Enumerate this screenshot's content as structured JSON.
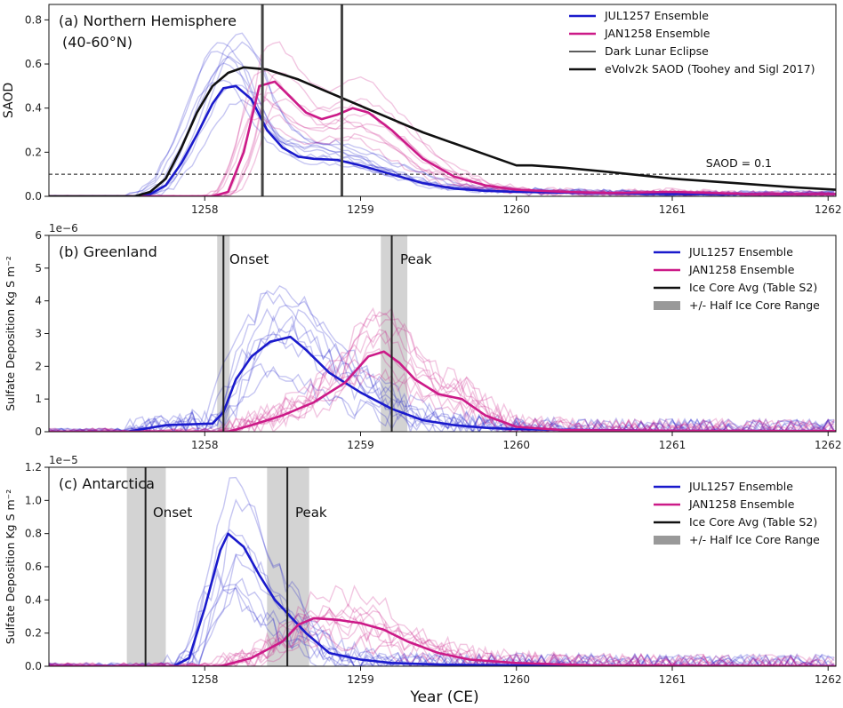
{
  "figure": {
    "xlabel": "Year (CE)"
  },
  "colors": {
    "jul": "#1a1acc",
    "jan": "#cc1a88",
    "obs": "#111111",
    "shade": "#d3d3d3",
    "vline": "#444444"
  },
  "chart_data": [
    {
      "type": "line",
      "panel": "a",
      "title": "(a) Northern Hemisphere",
      "subtitle": "(40-60°N)",
      "ylabel": "SAOD",
      "xlim": [
        1257.0,
        1262.05
      ],
      "ylim": [
        0,
        0.87
      ],
      "xticks": [
        1258,
        1259,
        1260,
        1261,
        1262
      ],
      "yticks": [
        0.0,
        0.2,
        0.4,
        0.6,
        0.8
      ],
      "ytick_labels": [
        "0.0",
        "0.2",
        "0.4",
        "0.6",
        "0.8"
      ],
      "multiplier": "",
      "legend": [
        "JUL1257 Ensemble",
        "JAN1258 Ensemble",
        "Dark Lunar Eclipse",
        "eVolv2k SAOD (Toohey and Sigl 2017)"
      ],
      "hline": {
        "y": 0.1,
        "label": "SAOD = 0.1"
      },
      "vlines": [
        1258.37,
        1258.88
      ],
      "series": [
        {
          "name": "JUL1257 Ensemble mean",
          "x": [
            1257.0,
            1257.55,
            1257.65,
            1257.75,
            1257.85,
            1257.95,
            1258.05,
            1258.12,
            1258.2,
            1258.3,
            1258.4,
            1258.5,
            1258.6,
            1258.7,
            1258.85,
            1259.0,
            1259.2,
            1259.4,
            1259.6,
            1259.8,
            1260.0,
            1260.5,
            1261.0,
            1261.5,
            1262.05
          ],
          "y": [
            0,
            0,
            0.01,
            0.05,
            0.15,
            0.28,
            0.42,
            0.49,
            0.5,
            0.44,
            0.3,
            0.22,
            0.18,
            0.17,
            0.165,
            0.14,
            0.1,
            0.06,
            0.035,
            0.025,
            0.02,
            0.015,
            0.01,
            0.01,
            0.01
          ]
        },
        {
          "name": "JAN1258 Ensemble mean",
          "x": [
            1257.0,
            1258.05,
            1258.15,
            1258.25,
            1258.35,
            1258.45,
            1258.55,
            1258.65,
            1258.75,
            1258.85,
            1258.95,
            1259.05,
            1259.2,
            1259.4,
            1259.6,
            1259.8,
            1260.0,
            1260.3,
            1260.6,
            1261.0,
            1261.5,
            1262.05
          ],
          "y": [
            0,
            0,
            0.02,
            0.2,
            0.5,
            0.52,
            0.45,
            0.38,
            0.35,
            0.37,
            0.4,
            0.38,
            0.3,
            0.17,
            0.09,
            0.05,
            0.03,
            0.02,
            0.015,
            0.02,
            0.01,
            0.01
          ]
        },
        {
          "name": "eVolv2k SAOD (Toohey and Sigl 2017)",
          "x": [
            1257.0,
            1257.55,
            1257.65,
            1257.75,
            1257.85,
            1257.95,
            1258.05,
            1258.15,
            1258.25,
            1258.4,
            1258.6,
            1258.8,
            1259.0,
            1259.2,
            1259.4,
            1259.6,
            1259.8,
            1260.0,
            1260.1,
            1260.3,
            1260.6,
            1261.0,
            1261.4,
            1261.8,
            1262.05
          ],
          "y": [
            0,
            0,
            0.02,
            0.08,
            0.22,
            0.38,
            0.5,
            0.56,
            0.585,
            0.575,
            0.53,
            0.47,
            0.41,
            0.35,
            0.29,
            0.24,
            0.19,
            0.14,
            0.14,
            0.13,
            0.11,
            0.08,
            0.06,
            0.04,
            0.03
          ]
        }
      ]
    },
    {
      "type": "line",
      "panel": "b",
      "title": "(b) Greenland",
      "ylabel": "Sulfate Deposition Kg S m⁻²",
      "xlim": [
        1257.0,
        1262.05
      ],
      "ylim": [
        0,
        6
      ],
      "xticks": [
        1258,
        1259,
        1260,
        1261,
        1262
      ],
      "yticks": [
        0,
        1,
        2,
        3,
        4,
        5,
        6
      ],
      "ytick_labels": [
        "0",
        "1",
        "2",
        "3",
        "4",
        "5",
        "6"
      ],
      "multiplier": "1e−6",
      "legend": [
        "JUL1257 Ensemble",
        "JAN1258 Ensemble",
        "Ice Core Avg (Table S2)",
        "+/- Half Ice Core Range"
      ],
      "annotations": [
        "Onset",
        "Peak"
      ],
      "vlines": [
        1258.12,
        1259.2
      ],
      "shades": [
        [
          1258.08,
          1258.16
        ],
        [
          1259.13,
          1259.3
        ]
      ],
      "series": [
        {
          "name": "JUL1257 Ensemble mean",
          "x": [
            1257.0,
            1257.5,
            1257.75,
            1258.05,
            1258.12,
            1258.2,
            1258.3,
            1258.42,
            1258.55,
            1258.65,
            1258.8,
            1259.0,
            1259.2,
            1259.4,
            1259.6,
            1259.8,
            1260.0,
            1260.5,
            1261.0,
            1262.05
          ],
          "y": [
            0,
            0,
            0.2,
            0.25,
            0.6,
            1.6,
            2.3,
            2.75,
            2.9,
            2.5,
            1.8,
            1.2,
            0.7,
            0.35,
            0.2,
            0.12,
            0.08,
            0.05,
            0.03,
            0.02
          ]
        },
        {
          "name": "JAN1258 Ensemble mean",
          "x": [
            1257.0,
            1258.15,
            1258.3,
            1258.5,
            1258.7,
            1258.9,
            1259.05,
            1259.15,
            1259.25,
            1259.35,
            1259.5,
            1259.65,
            1259.8,
            1260.0,
            1260.3,
            1261.0,
            1262.05
          ],
          "y": [
            0,
            0,
            0.2,
            0.5,
            0.9,
            1.5,
            2.3,
            2.45,
            2.1,
            1.6,
            1.15,
            1.0,
            0.5,
            0.15,
            0.05,
            0.03,
            0.02
          ]
        }
      ]
    },
    {
      "type": "line",
      "panel": "c",
      "title": "(c) Antarctica",
      "ylabel": "Sulfate Deposition Kg S m⁻²",
      "xlim": [
        1257.0,
        1262.05
      ],
      "ylim": [
        0,
        1.2
      ],
      "xticks": [
        1258,
        1259,
        1260,
        1261,
        1262
      ],
      "yticks": [
        0.0,
        0.2,
        0.4,
        0.6,
        0.8,
        1.0,
        1.2
      ],
      "ytick_labels": [
        "0.0",
        "0.2",
        "0.4",
        "0.6",
        "0.8",
        "1.0",
        "1.2"
      ],
      "multiplier": "1e−5",
      "legend": [
        "JUL1257 Ensemble",
        "JAN1258 Ensemble",
        "Ice Core Avg (Table S2)",
        "+/- Half Ice Core Range"
      ],
      "annotations": [
        "Onset",
        "Peak"
      ],
      "vlines": [
        1257.62,
        1258.53
      ],
      "shades": [
        [
          1257.5,
          1257.75
        ],
        [
          1258.4,
          1258.67
        ]
      ],
      "series": [
        {
          "name": "JUL1257 Ensemble mean",
          "x": [
            1257.0,
            1257.8,
            1257.9,
            1258.0,
            1258.1,
            1258.15,
            1258.25,
            1258.35,
            1258.45,
            1258.55,
            1258.65,
            1258.8,
            1259.0,
            1259.2,
            1259.5,
            1260.0,
            1262.05
          ],
          "y": [
            0,
            0,
            0.05,
            0.35,
            0.7,
            0.8,
            0.72,
            0.55,
            0.4,
            0.3,
            0.2,
            0.08,
            0.04,
            0.02,
            0.01,
            0.005,
            0
          ]
        },
        {
          "name": "JAN1258 Ensemble mean",
          "x": [
            1257.0,
            1258.1,
            1258.3,
            1258.5,
            1258.6,
            1258.7,
            1258.85,
            1259.0,
            1259.15,
            1259.3,
            1259.5,
            1259.7,
            1260.0,
            1260.5,
            1262.05
          ],
          "y": [
            0,
            0,
            0.05,
            0.15,
            0.25,
            0.29,
            0.28,
            0.26,
            0.22,
            0.15,
            0.08,
            0.04,
            0.02,
            0.005,
            0
          ]
        }
      ]
    }
  ]
}
